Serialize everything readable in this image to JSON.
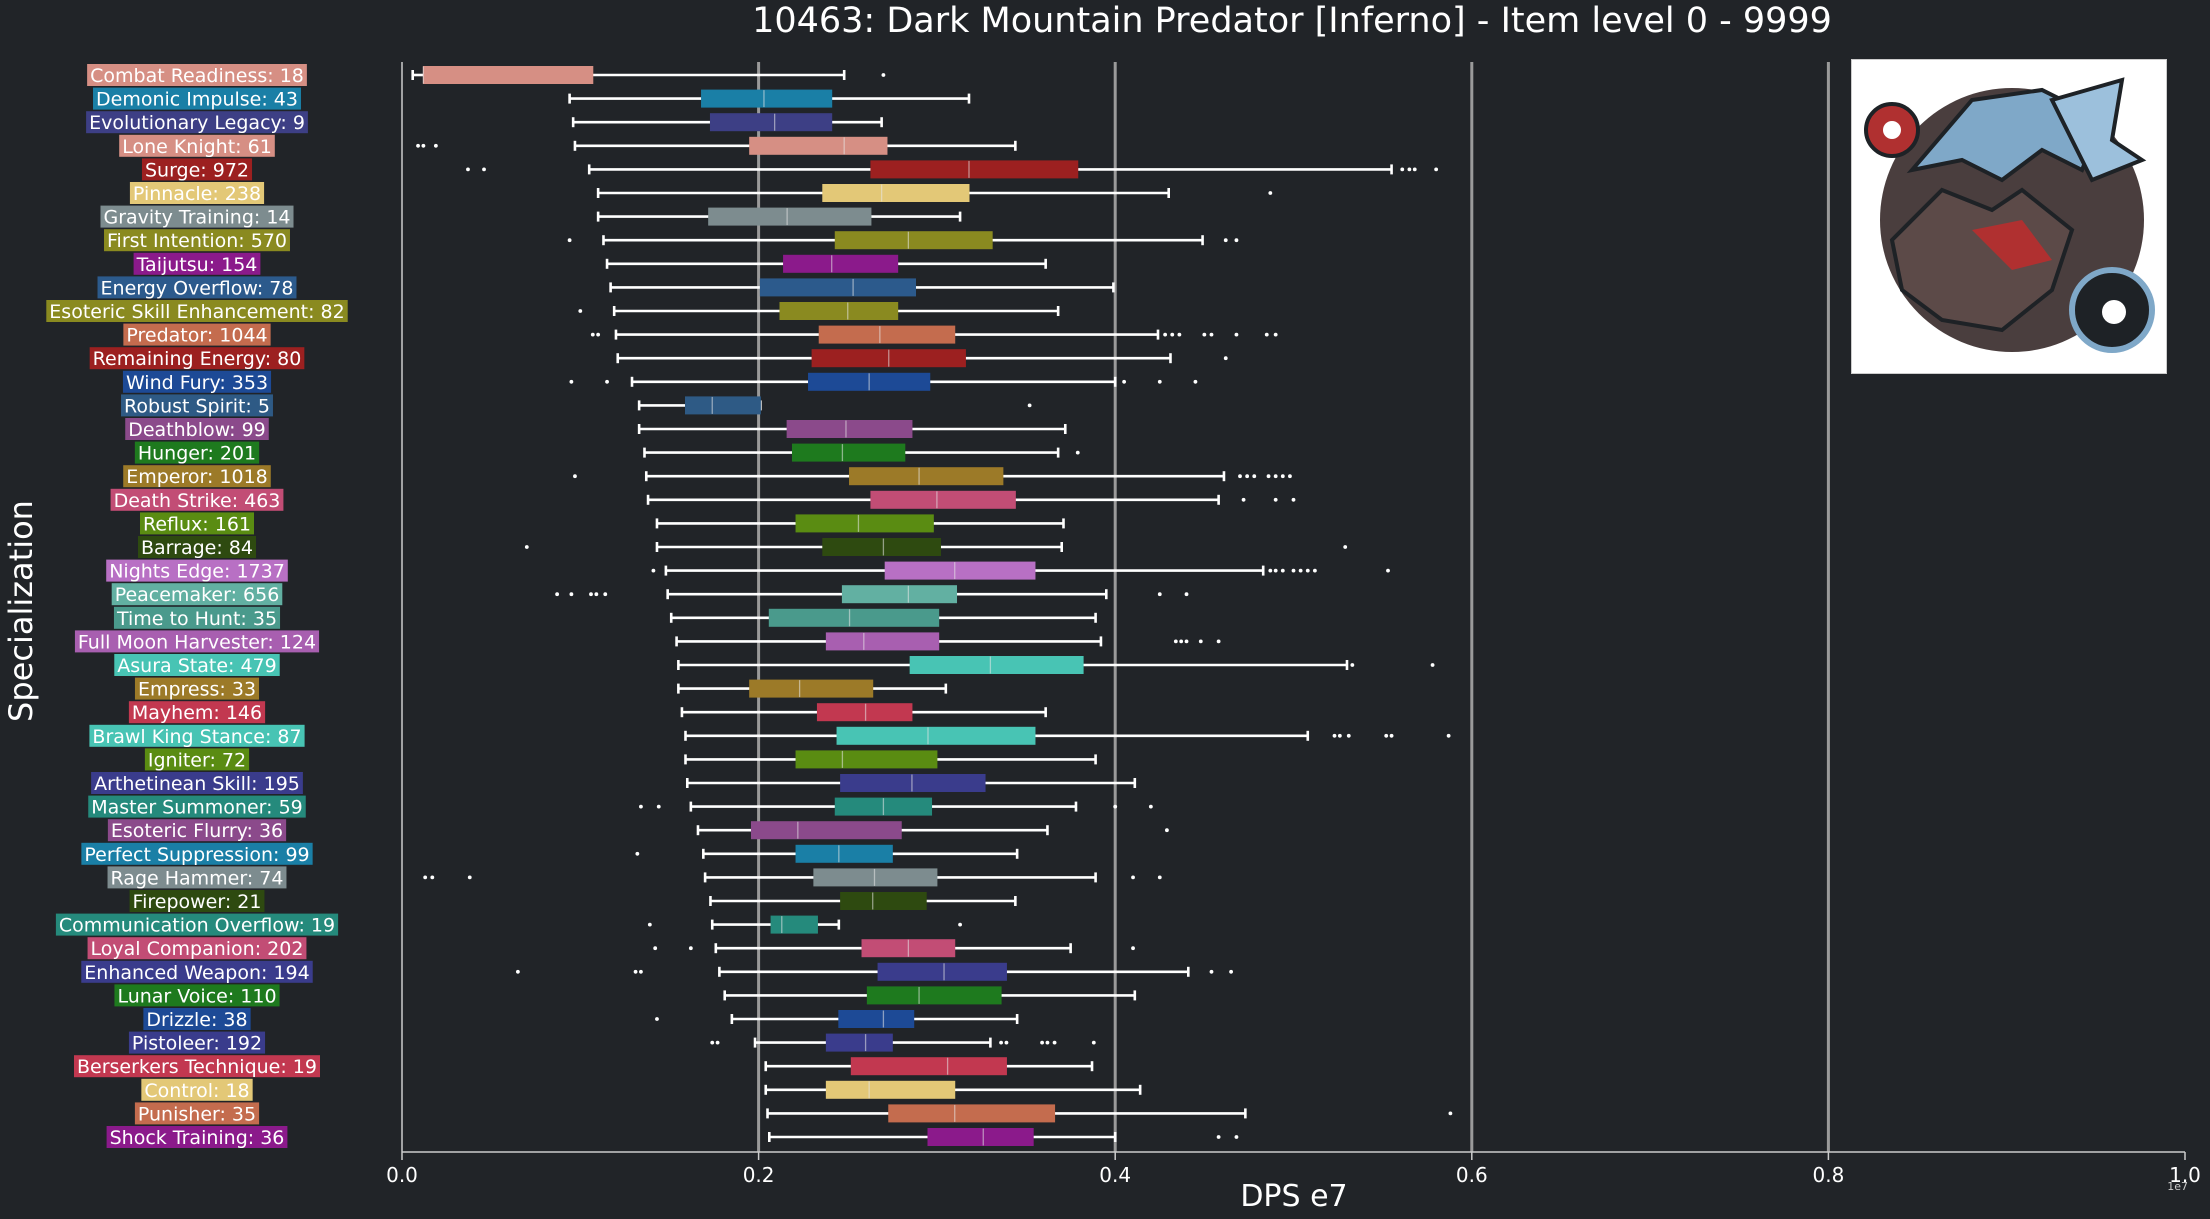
{
  "chart_data": {
    "type": "box",
    "title": "10463: Dark Mountain Predator [Inferno] - Item level 0 - 9999",
    "xlabel": "DPS e7",
    "ylabel": "Specialization",
    "x_ticks": [
      "0.0",
      "0.2",
      "0.4",
      "0.6",
      "0.8",
      "1.0"
    ],
    "x_offset_label": "1e7",
    "xlim": [
      0,
      1.0
    ],
    "grid": "vertical lines at 0.2, 0.4, 0.6, 0.8",
    "series": [
      {
        "label": "Combat Readiness: 18",
        "color": "#d68f84",
        "whisker_low": 0.006,
        "q1": 0.012,
        "median": 0.012,
        "q3": 0.107,
        "whisker_high": 0.248,
        "outliers": [
          0.27
        ]
      },
      {
        "label": "Demonic Impulse: 43",
        "color": "#1a7fa6",
        "whisker_low": 0.094,
        "q1": 0.168,
        "median": 0.203,
        "q3": 0.241,
        "whisker_high": 0.318,
        "outliers": []
      },
      {
        "label": "Evolutionary Legacy: 9",
        "color": "#3d3f85",
        "whisker_low": 0.096,
        "q1": 0.173,
        "median": 0.209,
        "q3": 0.241,
        "whisker_high": 0.269,
        "outliers": []
      },
      {
        "label": "Lone Knight: 61",
        "color": "#d68f84",
        "whisker_low": 0.097,
        "q1": 0.195,
        "median": 0.248,
        "q3": 0.272,
        "whisker_high": 0.344,
        "outliers": [
          0.009,
          0.012,
          0.019
        ]
      },
      {
        "label": "Surge: 972",
        "color": "#9c2020",
        "whisker_low": 0.105,
        "q1": 0.263,
        "median": 0.318,
        "q3": 0.379,
        "whisker_high": 0.555,
        "outliers": [
          0.037,
          0.046,
          0.561,
          0.565,
          0.568,
          0.58
        ]
      },
      {
        "label": "Pinnacle: 238",
        "color": "#e3c877",
        "whisker_low": 0.11,
        "q1": 0.236,
        "median": 0.269,
        "q3": 0.318,
        "whisker_high": 0.43,
        "outliers": [
          0.487
        ]
      },
      {
        "label": "Gravity Training: 14",
        "color": "#7d8c8f",
        "whisker_low": 0.11,
        "q1": 0.172,
        "median": 0.216,
        "q3": 0.263,
        "whisker_high": 0.313,
        "outliers": []
      },
      {
        "label": "First Intention: 570",
        "color": "#8a8a20",
        "whisker_low": 0.113,
        "q1": 0.243,
        "median": 0.284,
        "q3": 0.331,
        "whisker_high": 0.449,
        "outliers": [
          0.094,
          0.462,
          0.468
        ]
      },
      {
        "label": "Taijutsu: 154",
        "color": "#8b1a8b",
        "whisker_low": 0.115,
        "q1": 0.214,
        "median": 0.241,
        "q3": 0.278,
        "whisker_high": 0.361,
        "outliers": []
      },
      {
        "label": "Energy Overflow: 78",
        "color": "#2c5a8c",
        "whisker_low": 0.117,
        "q1": 0.201,
        "median": 0.253,
        "q3": 0.288,
        "whisker_high": 0.399,
        "outliers": []
      },
      {
        "label": "Esoteric Skill Enhancement: 82",
        "color": "#8a8a20",
        "whisker_low": 0.119,
        "q1": 0.212,
        "median": 0.25,
        "q3": 0.278,
        "whisker_high": 0.368,
        "outliers": [
          0.1
        ]
      },
      {
        "label": "Predator: 1044",
        "color": "#c46c4e",
        "whisker_low": 0.12,
        "q1": 0.234,
        "median": 0.268,
        "q3": 0.31,
        "whisker_high": 0.424,
        "outliers": [
          0.107,
          0.11,
          0.428,
          0.432,
          0.436,
          0.45,
          0.454,
          0.468,
          0.485,
          0.49
        ]
      },
      {
        "label": "Remaining Energy: 80",
        "color": "#9c2020",
        "whisker_low": 0.121,
        "q1": 0.23,
        "median": 0.273,
        "q3": 0.316,
        "whisker_high": 0.431,
        "outliers": [
          0.462
        ]
      },
      {
        "label": "Wind Fury: 353",
        "color": "#1d4a96",
        "whisker_low": 0.129,
        "q1": 0.228,
        "median": 0.262,
        "q3": 0.296,
        "whisker_high": 0.4,
        "outliers": [
          0.095,
          0.115,
          0.405,
          0.425,
          0.445
        ]
      },
      {
        "label": "Robust Spirit: 5",
        "color": "#2e5a85",
        "whisker_low": 0.133,
        "q1": 0.159,
        "median": 0.174,
        "q3": 0.201,
        "whisker_high": 0.201,
        "outliers": [
          0.352
        ]
      },
      {
        "label": "Deathblow: 99",
        "color": "#8b4a8b",
        "whisker_low": 0.133,
        "q1": 0.216,
        "median": 0.249,
        "q3": 0.286,
        "whisker_high": 0.372,
        "outliers": []
      },
      {
        "label": "Hunger: 201",
        "color": "#1e7a1e",
        "whisker_low": 0.136,
        "q1": 0.219,
        "median": 0.247,
        "q3": 0.282,
        "whisker_high": 0.368,
        "outliers": [
          0.379
        ]
      },
      {
        "label": "Emperor: 1018",
        "color": "#9c7a28",
        "whisker_low": 0.137,
        "q1": 0.251,
        "median": 0.29,
        "q3": 0.337,
        "whisker_high": 0.461,
        "outliers": [
          0.097,
          0.47,
          0.474,
          0.478,
          0.486,
          0.49,
          0.494,
          0.498
        ]
      },
      {
        "label": "Death Strike: 463",
        "color": "#c24d75",
        "whisker_low": 0.138,
        "q1": 0.263,
        "median": 0.3,
        "q3": 0.344,
        "whisker_high": 0.458,
        "outliers": [
          0.472,
          0.49,
          0.5
        ]
      },
      {
        "label": "Reflux: 161",
        "color": "#5a8c12",
        "whisker_low": 0.143,
        "q1": 0.221,
        "median": 0.256,
        "q3": 0.298,
        "whisker_high": 0.371,
        "outliers": []
      },
      {
        "label": "Barrage: 84",
        "color": "#2e4a10",
        "whisker_low": 0.143,
        "q1": 0.236,
        "median": 0.27,
        "q3": 0.302,
        "whisker_high": 0.37,
        "outliers": [
          0.07,
          0.529
        ]
      },
      {
        "label": "Nights Edge: 1737",
        "color": "#b870c4",
        "whisker_low": 0.148,
        "q1": 0.271,
        "median": 0.31,
        "q3": 0.355,
        "whisker_high": 0.483,
        "outliers": [
          0.141,
          0.487,
          0.49,
          0.494,
          0.5,
          0.504,
          0.508,
          0.512,
          0.553
        ]
      },
      {
        "label": "Peacemaker: 656",
        "color": "#62b0a2",
        "whisker_low": 0.149,
        "q1": 0.247,
        "median": 0.284,
        "q3": 0.311,
        "whisker_high": 0.395,
        "outliers": [
          0.087,
          0.095,
          0.106,
          0.109,
          0.114,
          0.425,
          0.44
        ]
      },
      {
        "label": "Time to Hunt: 35",
        "color": "#4a9a8c",
        "whisker_low": 0.151,
        "q1": 0.206,
        "median": 0.251,
        "q3": 0.301,
        "whisker_high": 0.389,
        "outliers": []
      },
      {
        "label": "Full Moon Harvester: 124",
        "color": "#a85fb0",
        "whisker_low": 0.154,
        "q1": 0.238,
        "median": 0.259,
        "q3": 0.301,
        "whisker_high": 0.392,
        "outliers": [
          0.434,
          0.437,
          0.44,
          0.448,
          0.458
        ]
      },
      {
        "label": "Asura State: 479",
        "color": "#48c4b4",
        "whisker_low": 0.155,
        "q1": 0.285,
        "median": 0.33,
        "q3": 0.382,
        "whisker_high": 0.53,
        "outliers": [
          0.533,
          0.578
        ]
      },
      {
        "label": "Empress: 33",
        "color": "#9c7a28",
        "whisker_low": 0.155,
        "q1": 0.195,
        "median": 0.223,
        "q3": 0.264,
        "whisker_high": 0.305,
        "outliers": []
      },
      {
        "label": "Mayhem: 146",
        "color": "#c23850",
        "whisker_low": 0.157,
        "q1": 0.233,
        "median": 0.26,
        "q3": 0.286,
        "whisker_high": 0.361,
        "outliers": []
      },
      {
        "label": "Brawl King Stance: 87",
        "color": "#48c4b4",
        "whisker_low": 0.159,
        "q1": 0.244,
        "median": 0.295,
        "q3": 0.355,
        "whisker_high": 0.508,
        "outliers": [
          0.523,
          0.526,
          0.531,
          0.552,
          0.555,
          0.587
        ]
      },
      {
        "label": "Igniter: 72",
        "color": "#5a8c12",
        "whisker_low": 0.159,
        "q1": 0.221,
        "median": 0.247,
        "q3": 0.3,
        "whisker_high": 0.389,
        "outliers": []
      },
      {
        "label": "Arthetinean Skill: 195",
        "color": "#3a3c8c",
        "whisker_low": 0.16,
        "q1": 0.246,
        "median": 0.286,
        "q3": 0.327,
        "whisker_high": 0.411,
        "outliers": []
      },
      {
        "label": "Master Summoner: 59",
        "color": "#258a7c",
        "whisker_low": 0.162,
        "q1": 0.243,
        "median": 0.27,
        "q3": 0.297,
        "whisker_high": 0.378,
        "outliers": [
          0.134,
          0.144,
          0.4,
          0.42
        ]
      },
      {
        "label": "Esoteric Flurry: 36",
        "color": "#8b4a8b",
        "whisker_low": 0.166,
        "q1": 0.196,
        "median": 0.222,
        "q3": 0.28,
        "whisker_high": 0.362,
        "outliers": [
          0.429
        ]
      },
      {
        "label": "Perfect Suppression: 99",
        "color": "#1a7fa6",
        "whisker_low": 0.169,
        "q1": 0.221,
        "median": 0.245,
        "q3": 0.275,
        "whisker_high": 0.345,
        "outliers": [
          0.132
        ]
      },
      {
        "label": "Rage Hammer: 74",
        "color": "#7d8c8f",
        "whisker_low": 0.17,
        "q1": 0.231,
        "median": 0.265,
        "q3": 0.3,
        "whisker_high": 0.389,
        "outliers": [
          0.013,
          0.017,
          0.038,
          0.41,
          0.425
        ]
      },
      {
        "label": "Firepower: 21",
        "color": "#2e4a10",
        "whisker_low": 0.173,
        "q1": 0.246,
        "median": 0.264,
        "q3": 0.294,
        "whisker_high": 0.344,
        "outliers": []
      },
      {
        "label": "Communication Overflow: 19",
        "color": "#258a7c",
        "whisker_low": 0.174,
        "q1": 0.207,
        "median": 0.213,
        "q3": 0.233,
        "whisker_high": 0.245,
        "outliers": [
          0.139,
          0.313
        ]
      },
      {
        "label": "Loyal Companion: 202",
        "color": "#c24d75",
        "whisker_low": 0.176,
        "q1": 0.258,
        "median": 0.284,
        "q3": 0.31,
        "whisker_high": 0.375,
        "outliers": [
          0.142,
          0.162,
          0.41
        ]
      },
      {
        "label": "Enhanced Weapon: 194",
        "color": "#3a3c8c",
        "whisker_low": 0.178,
        "q1": 0.267,
        "median": 0.304,
        "q3": 0.339,
        "whisker_high": 0.441,
        "outliers": [
          0.065,
          0.131,
          0.134,
          0.454,
          0.465
        ]
      },
      {
        "label": "Lunar Voice: 110",
        "color": "#1e7a1e",
        "whisker_low": 0.181,
        "q1": 0.261,
        "median": 0.29,
        "q3": 0.336,
        "whisker_high": 0.411,
        "outliers": []
      },
      {
        "label": "Drizzle: 38",
        "color": "#1d4a96",
        "whisker_low": 0.185,
        "q1": 0.245,
        "median": 0.27,
        "q3": 0.287,
        "whisker_high": 0.345,
        "outliers": [
          0.143
        ]
      },
      {
        "label": "Pistoleer: 192",
        "color": "#3a3c8c",
        "whisker_low": 0.198,
        "q1": 0.238,
        "median": 0.26,
        "q3": 0.275,
        "whisker_high": 0.33,
        "outliers": [
          0.174,
          0.177,
          0.336,
          0.339,
          0.359,
          0.362,
          0.366,
          0.388
        ]
      },
      {
        "label": "Berserkers Technique: 19",
        "color": "#c23850",
        "whisker_low": 0.204,
        "q1": 0.252,
        "median": 0.306,
        "q3": 0.339,
        "whisker_high": 0.387,
        "outliers": []
      },
      {
        "label": "Control: 18",
        "color": "#e3c877",
        "whisker_low": 0.204,
        "q1": 0.238,
        "median": 0.262,
        "q3": 0.31,
        "whisker_high": 0.414,
        "outliers": []
      },
      {
        "label": "Punisher: 35",
        "color": "#c46c4e",
        "whisker_low": 0.205,
        "q1": 0.273,
        "median": 0.31,
        "q3": 0.366,
        "whisker_high": 0.473,
        "outliers": [
          0.588
        ]
      },
      {
        "label": "Shock Training: 36",
        "color": "#8b1a8b",
        "whisker_low": 0.206,
        "q1": 0.295,
        "median": 0.326,
        "q3": 0.354,
        "whisker_high": 0.4,
        "outliers": [
          0.458,
          0.468
        ]
      }
    ]
  },
  "portrait": {
    "label": "Dark Mountain Predator portrait",
    "colors": {
      "bg": "#ffffff",
      "beast": "#5c4a48",
      "armor": "#7fa8c8",
      "dark": "#1e2226",
      "red": "#b03030"
    }
  }
}
